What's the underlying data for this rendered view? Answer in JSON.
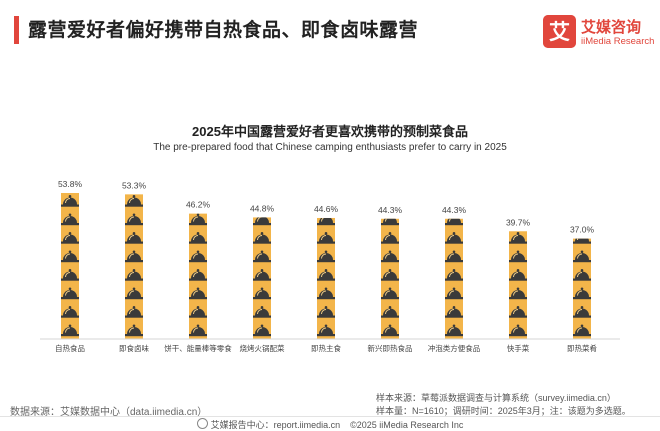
{
  "header": {
    "headline": "露营爱好者偏好携带自热食品、即食卤味露营"
  },
  "logo": {
    "mark_char": "艾",
    "name_cn": "艾媒咨询",
    "name_en": "iiMedia Research",
    "color": "#e1463c"
  },
  "chart_data": {
    "type": "bar",
    "title": "2025年中国露营爱好者更喜欢携带的预制菜食品",
    "subtitle": "The pre-prepared food that Chinese camping enthusiasts prefer to carry in 2025",
    "categories": [
      "自热食品",
      "即食卤味",
      "饼干、能量棒等零食",
      "烧烤火锅配菜",
      "即热主食",
      "新兴即热食品",
      "冲泡类方便食品",
      "快手菜",
      "即热菜肴"
    ],
    "values": [
      53.8,
      53.3,
      46.2,
      44.8,
      44.6,
      44.3,
      44.3,
      39.7,
      37.0
    ],
    "value_labels": [
      "53.8%",
      "53.3%",
      "46.2%",
      "44.8%",
      "44.6%",
      "44.3%",
      "44.3%",
      "39.7%",
      "37.0%"
    ],
    "unit": "%",
    "ylim": [
      0,
      55
    ],
    "grid": false,
    "legend": "none",
    "bar_color": "#f3b54a",
    "icon_name": "cloche-icon"
  },
  "footer": {
    "source": "数据来源：艾媒数据中心（data.iimedia.cn）",
    "sample_source": "样本来源：草莓派数据调查与计算系统（survey.iimedia.cn）",
    "sample_info": "样本量：N=1610；调研时间：2025年3月；注：该题为多选题。",
    "report_center": "艾媒报告中心：report.iimedia.cn",
    "copyright": "©2025  iiMedia Research  Inc"
  }
}
